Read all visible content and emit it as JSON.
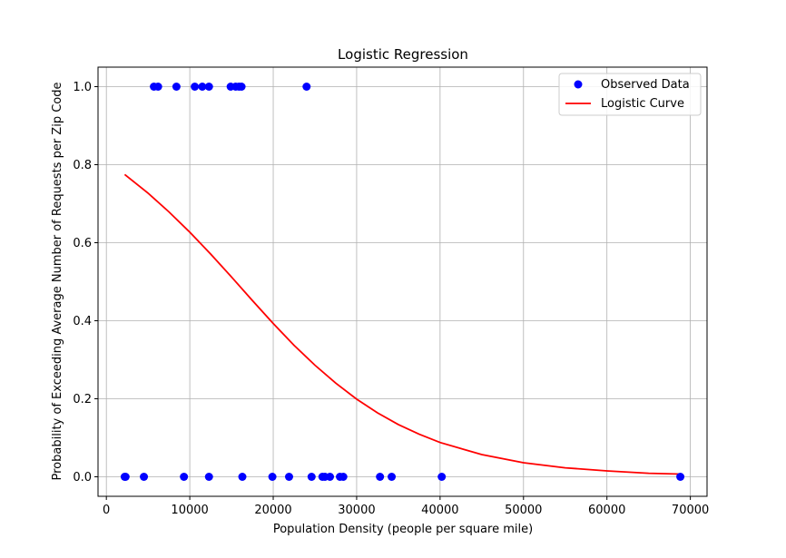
{
  "chart_data": {
    "type": "scatter",
    "title": "Logistic Regression",
    "xlabel": "Population Density (people per square mile)",
    "ylabel": "Probability of Exceeding Average Number of Requests per Zip Code",
    "xlim": [
      -1000,
      72000
    ],
    "ylim": [
      -0.05,
      1.05
    ],
    "x_ticks": [
      0,
      10000,
      20000,
      30000,
      40000,
      50000,
      60000,
      70000
    ],
    "x_tick_labels": [
      "0",
      "10000",
      "20000",
      "30000",
      "40000",
      "50000",
      "60000",
      "70000"
    ],
    "y_ticks": [
      0.0,
      0.2,
      0.4,
      0.6,
      0.8,
      1.0
    ],
    "y_tick_labels": [
      "0.0",
      "0.2",
      "0.4",
      "0.6",
      "0.8",
      "1.0"
    ],
    "grid": true,
    "legend_position": "top-right",
    "colors": {
      "points": "#0000ff",
      "curve": "#ff0000"
    },
    "series": [
      {
        "name": "Observed Data",
        "kind": "scatter",
        "x": [
          5700,
          6200,
          8400,
          10600,
          11500,
          12300,
          14900,
          15500,
          15900,
          16200,
          24000,
          2200,
          2300,
          4500,
          9300,
          12300,
          16300,
          19900,
          21900,
          24600,
          25900,
          26200,
          26800,
          28000,
          28400,
          32800,
          34200,
          40200,
          68800
        ],
        "y": [
          1,
          1,
          1,
          1,
          1,
          1,
          1,
          1,
          1,
          1,
          1,
          0,
          0,
          0,
          0,
          0,
          0,
          0,
          0,
          0,
          0,
          0,
          0,
          0,
          0,
          0,
          0,
          0,
          0
        ]
      },
      {
        "name": "Logistic Curve",
        "kind": "line",
        "x": [
          2200,
          5000,
          7500,
          10000,
          12500,
          15000,
          17500,
          20000,
          22500,
          25000,
          27500,
          30000,
          32500,
          35000,
          37500,
          40000,
          45000,
          50000,
          55000,
          60000,
          65000,
          68800
        ],
        "y": [
          0.775,
          0.727,
          0.679,
          0.627,
          0.571,
          0.512,
          0.452,
          0.393,
          0.337,
          0.286,
          0.24,
          0.199,
          0.164,
          0.134,
          0.109,
          0.088,
          0.057,
          0.036,
          0.023,
          0.015,
          0.009,
          0.007
        ]
      }
    ]
  }
}
